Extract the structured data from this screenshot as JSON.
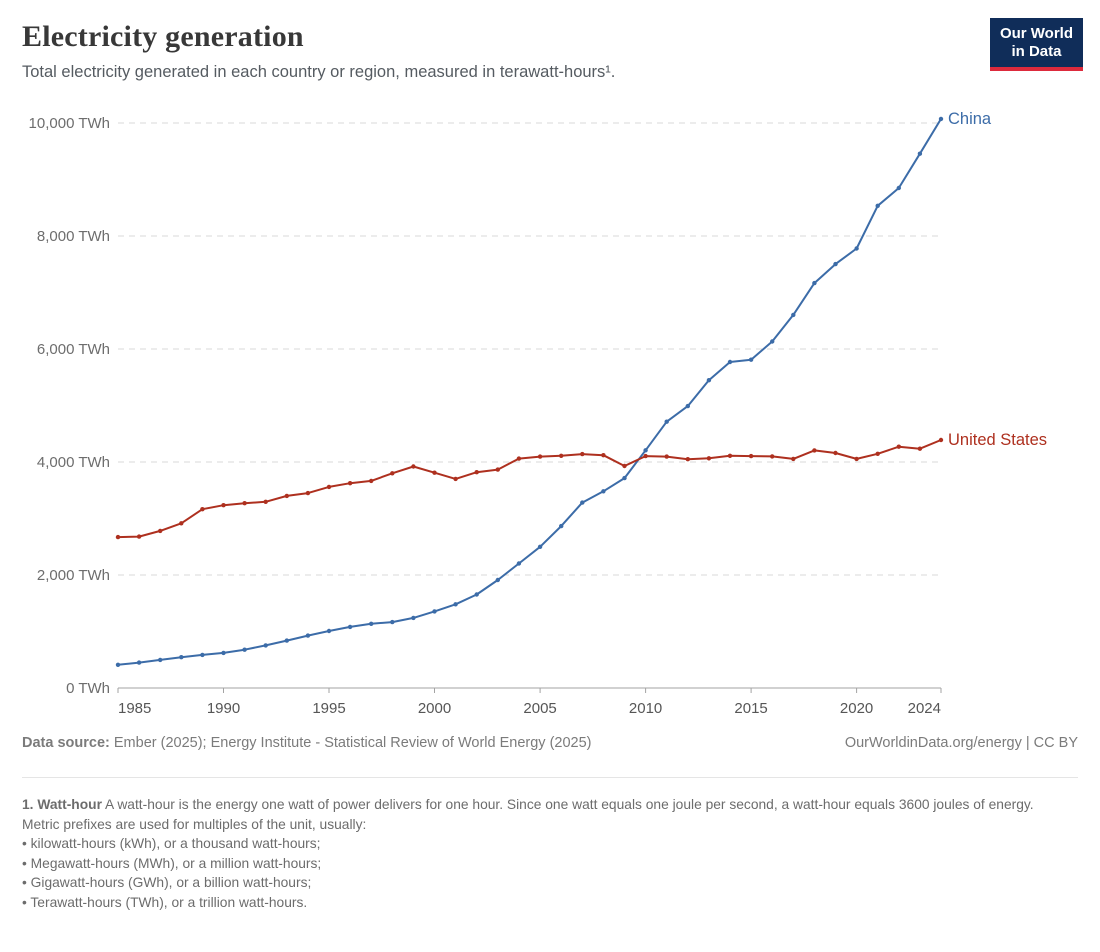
{
  "header": {
    "title": "Electricity generation",
    "subtitle": "Total electricity generated in each country or region, measured in terawatt-hours¹."
  },
  "logo": {
    "line1": "Our World",
    "line2": "in Data",
    "bg": "#102d59",
    "accent": "#dd2a3c"
  },
  "chart_data": {
    "type": "line",
    "title": "Electricity generation",
    "unit": "TWh",
    "grid": "horizontal-dashed",
    "legend": "end-of-line-labels",
    "x_range": [
      1985,
      2024
    ],
    "ylim": [
      0,
      10000
    ],
    "yticks": [
      0,
      2000,
      4000,
      6000,
      8000,
      10000
    ],
    "ytick_labels": [
      "0 TWh",
      "2,000 TWh",
      "4,000 TWh",
      "6,000 TWh",
      "8,000 TWh",
      "10,000 TWh"
    ],
    "xticks": [
      1985,
      1990,
      1995,
      2000,
      2005,
      2010,
      2015,
      2020,
      2024
    ],
    "years": [
      1985,
      1986,
      1987,
      1988,
      1989,
      1990,
      1991,
      1992,
      1993,
      1994,
      1995,
      1996,
      1997,
      1998,
      1999,
      2000,
      2001,
      2002,
      2003,
      2004,
      2005,
      2006,
      2007,
      2008,
      2009,
      2010,
      2011,
      2012,
      2013,
      2014,
      2015,
      2016,
      2017,
      2018,
      2019,
      2020,
      2021,
      2022,
      2023,
      2024
    ],
    "series": [
      {
        "name": "China",
        "color": "#3c6ca8",
        "values": [
          411,
          450,
          497,
          545,
          585,
          621,
          678,
          754,
          839,
          928,
          1008,
          1081,
          1136,
          1167,
          1240,
          1356,
          1481,
          1654,
          1911,
          2203,
          2500,
          2866,
          3282,
          3482,
          3715,
          4207,
          4713,
          4990,
          5447,
          5770,
          5810,
          6133,
          6604,
          7166,
          7503,
          7779,
          8534,
          8849,
          9456,
          10073
        ]
      },
      {
        "name": "United States",
        "color": "#ae301f",
        "values": [
          2670,
          2680,
          2780,
          2915,
          3165,
          3235,
          3270,
          3295,
          3400,
          3450,
          3560,
          3625,
          3665,
          3800,
          3920,
          3810,
          3700,
          3820,
          3865,
          4060,
          4095,
          4110,
          4140,
          4120,
          3930,
          4105,
          4095,
          4050,
          4065,
          4110,
          4105,
          4100,
          4055,
          4205,
          4160,
          4055,
          4145,
          4270,
          4235,
          4390
        ]
      }
    ]
  },
  "footer": {
    "source_label": "Data source:",
    "source_text": "Ember (2025); Energy Institute - Statistical Review of World Energy (2025)",
    "attribution": "OurWorldinData.org/energy | CC BY"
  },
  "footnote": {
    "lead": "1. Watt-hour",
    "body": "A watt-hour is the energy one watt of power delivers for one hour. Since one watt equals one joule per second, a watt-hour equals 3600 joules of energy.",
    "metric_line": "Metric prefixes are used for multiples of the unit, usually:",
    "bullets": [
      "• kilowatt-hours (kWh), or a thousand watt-hours;",
      "• Megawatt-hours (MWh), or a million watt-hours;",
      "• Gigawatt-hours (GWh), or a billion watt-hours;",
      "• Terawatt-hours (TWh), or a trillion watt-hours."
    ]
  }
}
